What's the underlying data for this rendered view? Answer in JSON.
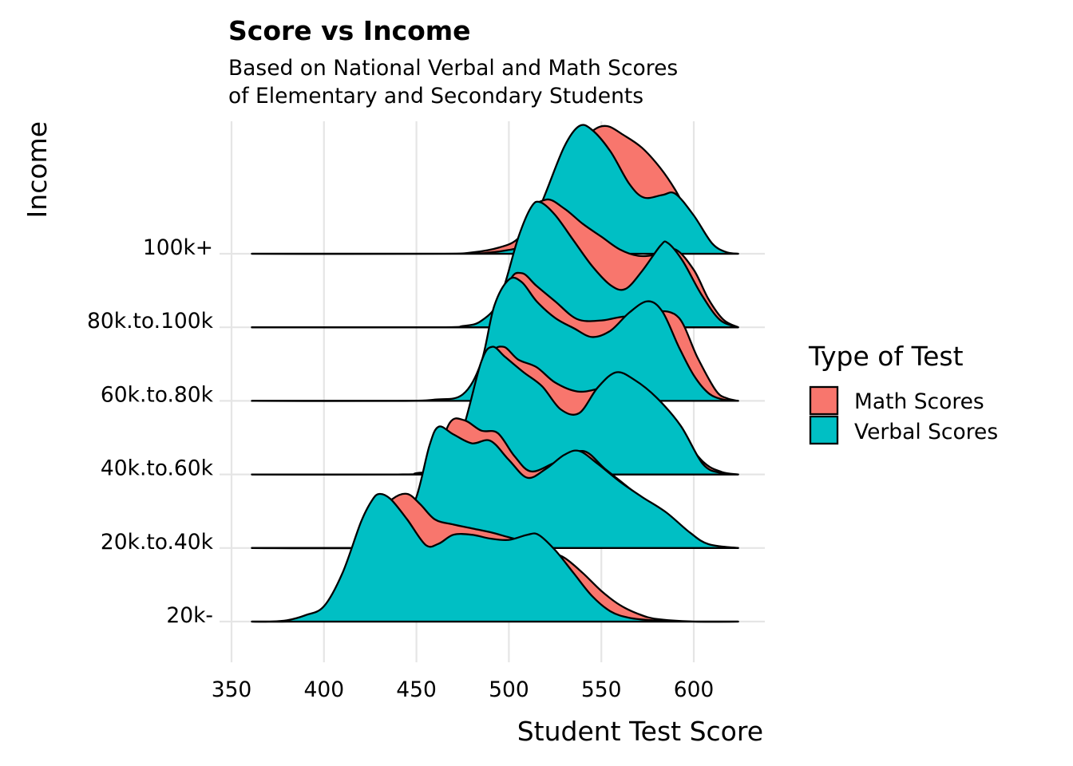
{
  "chart_data": {
    "type": "ridgeline",
    "title": "Score vs Income",
    "subtitle": [
      "Based on National Verbal and Math Scores",
      "of Elementary and Secondary Students"
    ],
    "xlabel": "Student Test Score",
    "ylabel": "Income",
    "xlim": [
      350,
      630
    ],
    "xticks": [
      350,
      400,
      450,
      500,
      550,
      600
    ],
    "x_range": [
      361,
      624
    ],
    "grid": true,
    "legend": {
      "title": "Type of Test",
      "position": "right",
      "entries": [
        {
          "label": "Math Scores",
          "color": "#F8766D"
        },
        {
          "label": "Verbal Scores",
          "color": "#00BFC4"
        }
      ]
    },
    "categories": [
      "20k-",
      "20k.to.40k",
      "40k.to.60k",
      "60k.to.80k",
      "80k.to.100k",
      "100k+"
    ],
    "series": [
      {
        "name": "Math Scores",
        "color": "#F8766D",
        "ridges": {
          "20k-": [
            [
              361,
              0
            ],
            [
              380,
              0
            ],
            [
              390,
              0.01
            ],
            [
              400,
              0.04
            ],
            [
              410,
              0.16
            ],
            [
              420,
              0.48
            ],
            [
              430,
              0.84
            ],
            [
              437,
              0.96
            ],
            [
              445,
              1.0
            ],
            [
              452,
              0.92
            ],
            [
              460,
              0.8
            ],
            [
              470,
              0.76
            ],
            [
              480,
              0.73
            ],
            [
              490,
              0.7
            ],
            [
              500,
              0.66
            ],
            [
              510,
              0.62
            ],
            [
              520,
              0.56
            ],
            [
              530,
              0.5
            ],
            [
              540,
              0.38
            ],
            [
              550,
              0.24
            ],
            [
              560,
              0.13
            ],
            [
              570,
              0.06
            ],
            [
              580,
              0.02
            ],
            [
              600,
              0
            ],
            [
              624,
              0
            ]
          ],
          "20k.to.40k": [
            [
              361,
              0
            ],
            [
              420,
              0
            ],
            [
              440,
              0.03
            ],
            [
              450,
              0.25
            ],
            [
              460,
              0.65
            ],
            [
              468,
              0.98
            ],
            [
              476,
              1.0
            ],
            [
              485,
              0.92
            ],
            [
              494,
              0.9
            ],
            [
              503,
              0.72
            ],
            [
              512,
              0.6
            ],
            [
              525,
              0.67
            ],
            [
              540,
              0.76
            ],
            [
              552,
              0.62
            ],
            [
              565,
              0.47
            ],
            [
              578,
              0.32
            ],
            [
              592,
              0.16
            ],
            [
              605,
              0.04
            ],
            [
              615,
              0.01
            ],
            [
              624,
              0
            ]
          ],
          "40k.to.60k": [
            [
              361,
              0
            ],
            [
              450,
              0
            ],
            [
              460,
              0.01
            ],
            [
              470,
              0.08
            ],
            [
              480,
              0.46
            ],
            [
              490,
              0.92
            ],
            [
              497,
              1.0
            ],
            [
              505,
              0.9
            ],
            [
              515,
              0.84
            ],
            [
              525,
              0.72
            ],
            [
              537,
              0.65
            ],
            [
              548,
              0.67
            ],
            [
              560,
              0.72
            ],
            [
              575,
              0.56
            ],
            [
              590,
              0.36
            ],
            [
              605,
              0.1
            ],
            [
              615,
              0.02
            ],
            [
              624,
              0
            ]
          ],
          "60k.to.80k": [
            [
              361,
              0
            ],
            [
              450,
              0
            ],
            [
              470,
              0.01
            ],
            [
              480,
              0.05
            ],
            [
              490,
              0.4
            ],
            [
              500,
              0.92
            ],
            [
              507,
              1.0
            ],
            [
              515,
              0.9
            ],
            [
              525,
              0.78
            ],
            [
              537,
              0.64
            ],
            [
              550,
              0.63
            ],
            [
              563,
              0.66
            ],
            [
              572,
              0.62
            ],
            [
              580,
              0.7
            ],
            [
              592,
              0.65
            ],
            [
              602,
              0.34
            ],
            [
              612,
              0.08
            ],
            [
              618,
              0.02
            ],
            [
              624,
              0
            ]
          ],
          "80k.to.100k": [
            [
              361,
              0
            ],
            [
              460,
              0
            ],
            [
              480,
              0.01
            ],
            [
              490,
              0.04
            ],
            [
              500,
              0.3
            ],
            [
              510,
              0.86
            ],
            [
              520,
              1.0
            ],
            [
              530,
              0.93
            ],
            [
              540,
              0.81
            ],
            [
              550,
              0.71
            ],
            [
              560,
              0.61
            ],
            [
              570,
              0.56
            ],
            [
              580,
              0.57
            ],
            [
              590,
              0.61
            ],
            [
              600,
              0.45
            ],
            [
              608,
              0.22
            ],
            [
              616,
              0.06
            ],
            [
              624,
              0
            ]
          ],
          "100k+": [
            [
              361,
              0
            ],
            [
              460,
              0
            ],
            [
              480,
              0.01
            ],
            [
              495,
              0.05
            ],
            [
              505,
              0.12
            ],
            [
              515,
              0.32
            ],
            [
              525,
              0.55
            ],
            [
              535,
              0.8
            ],
            [
              545,
              0.96
            ],
            [
              553,
              1.0
            ],
            [
              562,
              0.93
            ],
            [
              572,
              0.83
            ],
            [
              582,
              0.67
            ],
            [
              590,
              0.5
            ],
            [
              600,
              0.24
            ],
            [
              610,
              0.06
            ],
            [
              618,
              0.01
            ],
            [
              624,
              0
            ]
          ]
        }
      },
      {
        "name": "Verbal Scores",
        "color": "#00BFC4",
        "ridges": {
          "20k-": [
            [
              361,
              0
            ],
            [
              370,
              0
            ],
            [
              380,
              0.01
            ],
            [
              390,
              0.05
            ],
            [
              400,
              0.12
            ],
            [
              410,
              0.38
            ],
            [
              420,
              0.78
            ],
            [
              426,
              0.95
            ],
            [
              430,
              1.0
            ],
            [
              436,
              0.96
            ],
            [
              445,
              0.8
            ],
            [
              455,
              0.6
            ],
            [
              462,
              0.61
            ],
            [
              470,
              0.68
            ],
            [
              480,
              0.68
            ],
            [
              490,
              0.65
            ],
            [
              500,
              0.64
            ],
            [
              510,
              0.68
            ],
            [
              516,
              0.68
            ],
            [
              525,
              0.56
            ],
            [
              535,
              0.38
            ],
            [
              545,
              0.2
            ],
            [
              555,
              0.08
            ],
            [
              565,
              0.03
            ],
            [
              578,
              0.01
            ],
            [
              600,
              0
            ],
            [
              624,
              0
            ]
          ],
          "20k.to.40k": [
            [
              361,
              0
            ],
            [
              420,
              0
            ],
            [
              430,
              0.01
            ],
            [
              440,
              0.07
            ],
            [
              450,
              0.4
            ],
            [
              457,
              0.8
            ],
            [
              462,
              0.95
            ],
            [
              470,
              0.89
            ],
            [
              480,
              0.82
            ],
            [
              490,
              0.84
            ],
            [
              500,
              0.69
            ],
            [
              510,
              0.55
            ],
            [
              520,
              0.62
            ],
            [
              530,
              0.73
            ],
            [
              538,
              0.76
            ],
            [
              548,
              0.66
            ],
            [
              560,
              0.52
            ],
            [
              572,
              0.4
            ],
            [
              585,
              0.28
            ],
            [
              598,
              0.12
            ],
            [
              608,
              0.03
            ],
            [
              624,
              0
            ]
          ],
          "40k.to.60k": [
            [
              361,
              0
            ],
            [
              440,
              0
            ],
            [
              450,
              0.01
            ],
            [
              465,
              0.06
            ],
            [
              475,
              0.35
            ],
            [
              485,
              0.88
            ],
            [
              491,
              1.0
            ],
            [
              498,
              0.92
            ],
            [
              508,
              0.8
            ],
            [
              518,
              0.69
            ],
            [
              528,
              0.51
            ],
            [
              538,
              0.48
            ],
            [
              548,
              0.68
            ],
            [
              558,
              0.8
            ],
            [
              568,
              0.74
            ],
            [
              580,
              0.6
            ],
            [
              593,
              0.38
            ],
            [
              605,
              0.08
            ],
            [
              615,
              0.01
            ],
            [
              624,
              0
            ]
          ],
          "60k.to.80k": [
            [
              361,
              0
            ],
            [
              440,
              0
            ],
            [
              460,
              0.01
            ],
            [
              475,
              0.05
            ],
            [
              485,
              0.3
            ],
            [
              492,
              0.74
            ],
            [
              500,
              0.95
            ],
            [
              507,
              0.93
            ],
            [
              515,
              0.78
            ],
            [
              525,
              0.65
            ],
            [
              535,
              0.57
            ],
            [
              545,
              0.5
            ],
            [
              555,
              0.55
            ],
            [
              565,
              0.69
            ],
            [
              575,
              0.78
            ],
            [
              583,
              0.7
            ],
            [
              592,
              0.42
            ],
            [
              600,
              0.2
            ],
            [
              608,
              0.06
            ],
            [
              616,
              0.01
            ],
            [
              624,
              0
            ]
          ],
          "80k.to.100k": [
            [
              361,
              0
            ],
            [
              460,
              0
            ],
            [
              475,
              0.01
            ],
            [
              485,
              0.05
            ],
            [
              495,
              0.22
            ],
            [
              505,
              0.7
            ],
            [
              512,
              0.94
            ],
            [
              517,
              0.98
            ],
            [
              525,
              0.88
            ],
            [
              535,
              0.68
            ],
            [
              545,
              0.48
            ],
            [
              555,
              0.33
            ],
            [
              563,
              0.3
            ],
            [
              572,
              0.44
            ],
            [
              582,
              0.64
            ],
            [
              586,
              0.66
            ],
            [
              594,
              0.52
            ],
            [
              604,
              0.26
            ],
            [
              614,
              0.06
            ],
            [
              624,
              0
            ]
          ],
          "100k+": [
            [
              361,
              0
            ],
            [
              470,
              0
            ],
            [
              490,
              0.01
            ],
            [
              500,
              0.03
            ],
            [
              505,
              0.05
            ],
            [
              510,
              0.12
            ],
            [
              520,
              0.48
            ],
            [
              530,
              0.84
            ],
            [
              538,
              1.0
            ],
            [
              545,
              0.97
            ],
            [
              555,
              0.8
            ],
            [
              565,
              0.55
            ],
            [
              573,
              0.44
            ],
            [
              583,
              0.46
            ],
            [
              590,
              0.47
            ],
            [
              600,
              0.3
            ],
            [
              610,
              0.08
            ],
            [
              618,
              0.01
            ],
            [
              624,
              0
            ]
          ]
        }
      }
    ]
  }
}
